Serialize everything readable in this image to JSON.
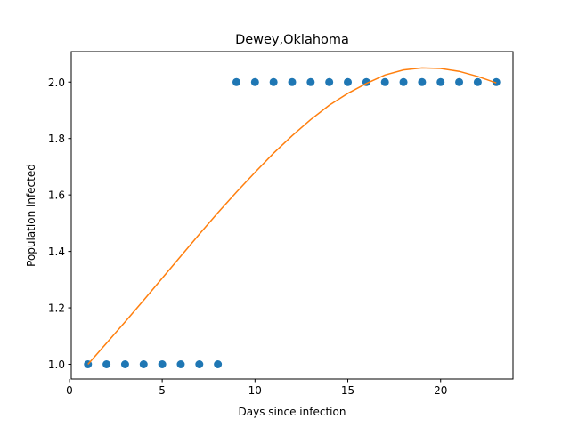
{
  "chart_data": {
    "type": "scatter",
    "title": "Dewey,Oklahoma",
    "xlabel": "Days since infection",
    "ylabel": "Population infected",
    "xlim": [
      0.1,
      23.9
    ],
    "ylim": [
      0.948,
      2.108
    ],
    "xticks": [
      0,
      5,
      10,
      15,
      20
    ],
    "yticks": [
      1.0,
      1.2,
      1.4,
      1.6,
      1.8,
      2.0
    ],
    "grid": false,
    "series": [
      {
        "kind": "scatter",
        "color": "#1f77b4",
        "x": [
          1,
          2,
          3,
          4,
          5,
          6,
          7,
          8,
          9,
          10,
          11,
          12,
          13,
          14,
          15,
          16,
          17,
          18,
          19,
          20,
          21,
          22,
          23
        ],
        "y": [
          1,
          1,
          1,
          1,
          1,
          1,
          1,
          1,
          2,
          2,
          2,
          2,
          2,
          2,
          2,
          2,
          2,
          2,
          2,
          2,
          2,
          2,
          2
        ]
      },
      {
        "kind": "line",
        "color": "#ff7f0e",
        "x": [
          1,
          2,
          3,
          4,
          5,
          6,
          7,
          8,
          9,
          10,
          11,
          12,
          13,
          14,
          15,
          16,
          17,
          18,
          19,
          20,
          21,
          22,
          23
        ],
        "y": [
          1.0,
          1.075,
          1.15,
          1.227,
          1.305,
          1.383,
          1.461,
          1.537,
          1.61,
          1.68,
          1.748,
          1.81,
          1.867,
          1.918,
          1.96,
          1.995,
          2.025,
          2.043,
          2.05,
          2.048,
          2.038,
          2.02,
          1.997
        ]
      }
    ]
  }
}
